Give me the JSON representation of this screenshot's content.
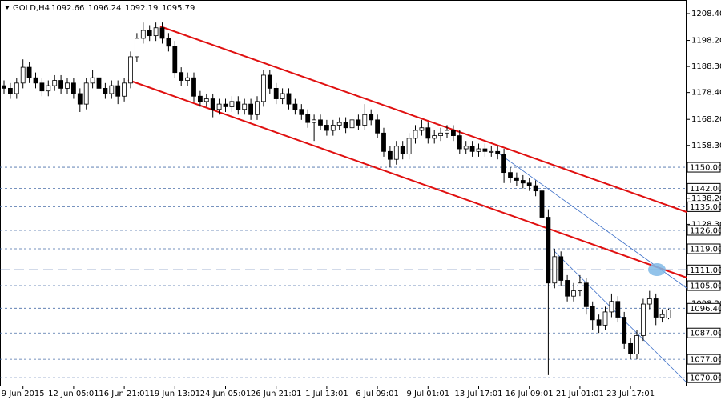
{
  "chart_data": {
    "type": "candlestick",
    "title": "GOLD,H4",
    "categories": [
      null,
      null,
      null,
      "9 Jun 2015",
      null,
      null,
      null,
      null,
      null,
      null,
      null,
      "12 Jun 05:01",
      null,
      null,
      null,
      null,
      null,
      null,
      null,
      "16 Jun 21:01",
      null,
      null,
      null,
      null,
      null,
      null,
      null,
      "19 Jun 13:01",
      null,
      null,
      null,
      null,
      null,
      null,
      null,
      "24 Jun 05:01",
      null,
      null,
      null,
      null,
      null,
      null,
      null,
      "26 Jun 21:01",
      null,
      null,
      null,
      null,
      null,
      null,
      null,
      "1 Jul 13:01",
      null,
      null,
      null,
      null,
      null,
      null,
      null,
      "6 Jul 09:01",
      null,
      null,
      null,
      null,
      null,
      null,
      null,
      "9 Jul 01:01",
      null,
      null,
      null,
      null,
      null,
      null,
      null,
      "13 Jul 17:01",
      null,
      null,
      null,
      null,
      null,
      null,
      null,
      "16 Jul 09:01",
      null,
      null,
      null,
      null,
      null,
      null,
      null,
      "21 Jul 01:01",
      null,
      null,
      null,
      null,
      null,
      null,
      null,
      "23 Jul 17:01",
      null,
      null,
      null,
      null,
      null,
      null
    ],
    "open": [
      1181,
      1180,
      1178,
      1182,
      1188,
      1184,
      1182,
      1179,
      1181,
      1183,
      1180,
      1182,
      1178,
      1174,
      1182,
      1184,
      1180,
      1178,
      1181,
      1177,
      1182,
      1192,
      1199,
      1202,
      1200,
      1203,
      1199,
      1196,
      1186,
      1183,
      1184,
      1177,
      1175,
      1176,
      1172,
      1174,
      1173,
      1175,
      1172,
      1174,
      1170,
      1175,
      1185,
      1180,
      1176,
      1178,
      1174,
      1172,
      1170,
      1167,
      1168,
      1166,
      1164,
      1166,
      1167,
      1165,
      1168,
      1166,
      1170,
      1168,
      1163,
      1156,
      1153,
      1158,
      1155,
      1161,
      1164,
      1165,
      1161,
      1162,
      1163,
      1164,
      1162,
      1157,
      1158,
      1156,
      1157,
      1156,
      1156,
      1155,
      1148,
      1146,
      1145,
      1144,
      1143,
      1141,
      1131,
      1106,
      1116,
      1107,
      1101,
      1103,
      1106,
      1097,
      1092,
      1090,
      1095,
      1099,
      1093,
      1083,
      1079,
      1086,
      1098,
      1100,
      1093,
      1092.66
    ],
    "high": [
      1183,
      1182,
      1184,
      1191,
      1190,
      1186,
      1184,
      1183,
      1185,
      1185,
      1184,
      1184,
      1180,
      1184,
      1187,
      1186,
      1182,
      1183,
      1183,
      1184,
      1194,
      1201,
      1205,
      1204,
      1205,
      1205,
      1201,
      1198,
      1188,
      1186,
      1186,
      1179,
      1178,
      1178,
      1176,
      1176,
      1177,
      1177,
      1176,
      1176,
      1177,
      1187,
      1187,
      1182,
      1180,
      1180,
      1176,
      1174,
      1172,
      1170,
      1170,
      1168,
      1168,
      1169,
      1169,
      1170,
      1170,
      1174,
      1172,
      1170,
      1165,
      1158,
      1160,
      1160,
      1163,
      1166,
      1168,
      1167,
      1164,
      1165,
      1166,
      1166,
      1164,
      1160,
      1160,
      1159,
      1159,
      1158,
      1158,
      1157,
      1150,
      1148,
      1147,
      1146,
      1145,
      1143,
      1134,
      1119,
      1118,
      1109,
      1106,
      1109,
      1108,
      1099,
      1094,
      1097,
      1102,
      1101,
      1095,
      1085,
      1088,
      1100,
      1103,
      1102,
      1096,
      1096.24
    ],
    "low": [
      1178,
      1176,
      1176,
      1180,
      1182,
      1180,
      1177,
      1177,
      1179,
      1178,
      1178,
      1176,
      1171,
      1172,
      1180,
      1178,
      1176,
      1176,
      1174,
      1175,
      1180,
      1190,
      1197,
      1198,
      1198,
      1197,
      1194,
      1184,
      1181,
      1181,
      1175,
      1173,
      1173,
      1169,
      1170,
      1171,
      1171,
      1170,
      1170,
      1168,
      1168,
      1173,
      1178,
      1174,
      1174,
      1172,
      1170,
      1168,
      1165,
      1160,
      1164,
      1162,
      1162,
      1164,
      1163,
      1163,
      1164,
      1164,
      1166,
      1161,
      1154,
      1150,
      1151,
      1153,
      1153,
      1159,
      1162,
      1159,
      1159,
      1160,
      1161,
      1160,
      1155,
      1155,
      1154,
      1154,
      1154,
      1154,
      1153,
      1144,
      1144,
      1143,
      1142,
      1141,
      1139,
      1129,
      1071,
      1104,
      1105,
      1099,
      1099,
      1101,
      1094,
      1088,
      1087,
      1088,
      1093,
      1091,
      1081,
      1077,
      1077,
      1084,
      1096,
      1090,
      1091,
      1092.19
    ],
    "close": [
      1180,
      1178,
      1182,
      1188,
      1184,
      1182,
      1179,
      1181,
      1183,
      1180,
      1182,
      1178,
      1174,
      1182,
      1184,
      1180,
      1178,
      1181,
      1177,
      1182,
      1192,
      1199,
      1202,
      1200,
      1203,
      1199,
      1196,
      1186,
      1183,
      1184,
      1177,
      1175,
      1176,
      1172,
      1174,
      1173,
      1175,
      1172,
      1174,
      1170,
      1175,
      1185,
      1180,
      1176,
      1178,
      1174,
      1172,
      1170,
      1167,
      1168,
      1166,
      1164,
      1166,
      1167,
      1165,
      1168,
      1166,
      1170,
      1168,
      1163,
      1156,
      1153,
      1158,
      1155,
      1161,
      1164,
      1165,
      1161,
      1162,
      1163,
      1164,
      1162,
      1157,
      1158,
      1156,
      1157,
      1156,
      1156,
      1155,
      1148,
      1146,
      1145,
      1144,
      1143,
      1141,
      1131,
      1106,
      1116,
      1107,
      1101,
      1103,
      1106,
      1097,
      1092,
      1090,
      1095,
      1099,
      1093,
      1083,
      1079,
      1086,
      1098,
      1100,
      1093,
      1094,
      1095.79
    ],
    "ylim": [
      1067,
      1213.57
    ],
    "yticks": [
      {
        "value": 1208.4,
        "label": "1208.40"
      },
      {
        "value": 1198.2,
        "label": "1198.20"
      },
      {
        "value": 1188.3,
        "label": "1188.30"
      },
      {
        "value": 1178.4,
        "label": "1178.40"
      },
      {
        "value": 1168.2,
        "label": "1168.20"
      },
      {
        "value": 1158.3,
        "label": "1158.30"
      },
      {
        "value": 1138.2,
        "label": "1138.20"
      },
      {
        "value": 1128.3,
        "label": "1128.30"
      },
      {
        "value": 1098.2,
        "label": "1098.20"
      }
    ],
    "levels": [
      {
        "value": 1150,
        "label": "1150.00"
      },
      {
        "value": 1142,
        "label": "1142.00"
      },
      {
        "value": 1135,
        "label": "1135.00"
      },
      {
        "value": 1126,
        "label": "1126.00"
      },
      {
        "value": 1119,
        "label": "1119.00"
      },
      {
        "value": 1111,
        "label": "1111.00"
      },
      {
        "value": 1105,
        "label": "1105.00"
      },
      {
        "value": 1096.4,
        "label": "1096.40"
      },
      {
        "value": 1087,
        "label": "1087.00"
      },
      {
        "value": 1077,
        "label": "1077.00"
      },
      {
        "value": 1070,
        "label": "1070.00"
      }
    ],
    "level_color": "#4a6fa8",
    "color": "#000000"
  }
}
